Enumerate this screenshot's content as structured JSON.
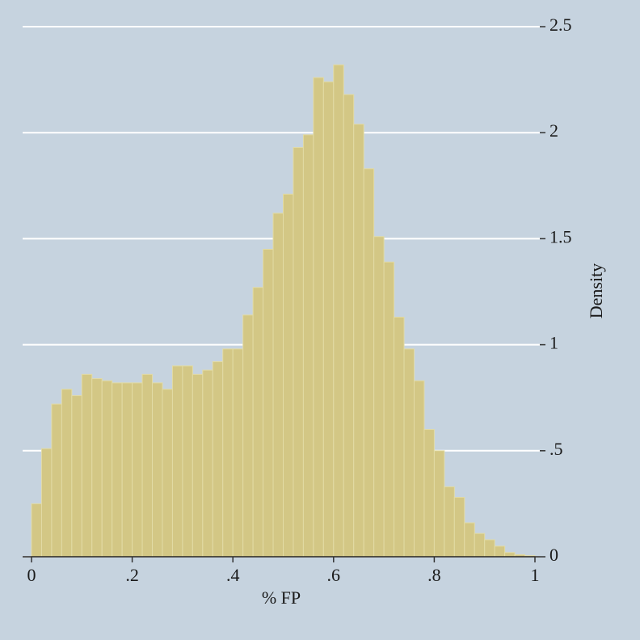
{
  "chart_data": {
    "type": "histogram",
    "xlabel": "% FP",
    "ylabel": "Density",
    "bins": [
      0,
      0.02,
      0.04,
      0.06,
      0.08,
      0.1,
      0.12,
      0.14,
      0.16,
      0.18,
      0.2,
      0.22,
      0.24,
      0.26,
      0.28,
      0.3,
      0.32,
      0.34,
      0.36,
      0.38,
      0.4,
      0.42,
      0.44,
      0.46,
      0.48,
      0.5,
      0.52,
      0.54,
      0.56,
      0.58,
      0.6,
      0.62,
      0.64,
      0.66,
      0.68,
      0.7,
      0.72,
      0.74,
      0.76,
      0.78,
      0.8,
      0.82,
      0.84,
      0.86,
      0.88,
      0.9,
      0.92,
      0.94,
      0.96,
      0.98,
      1
    ],
    "values": [
      0.25,
      0.51,
      0.72,
      0.79,
      0.76,
      0.86,
      0.84,
      0.83,
      0.82,
      0.82,
      0.82,
      0.86,
      0.82,
      0.79,
      0.9,
      0.9,
      0.86,
      0.88,
      0.92,
      0.98,
      0.98,
      1.14,
      1.27,
      1.45,
      1.62,
      1.71,
      1.93,
      1.99,
      2.26,
      2.24,
      2.32,
      2.18,
      2.04,
      1.83,
      1.51,
      1.39,
      1.13,
      0.98,
      0.83,
      0.6,
      0.5,
      0.33,
      0.28,
      0.16,
      0.11,
      0.08,
      0.05,
      0.02,
      0.01,
      0.005
    ],
    "color": "#d3c785",
    "xlim": [
      0,
      1
    ],
    "ylim": [
      0,
      2.5
    ],
    "xticks": [
      0,
      {
        "value": 0.2,
        "label": ".2"
      },
      {
        "value": 0.4,
        "label": ".4"
      },
      {
        "value": 0.6,
        "label": ".6"
      },
      {
        "value": 0.8,
        "label": ".8"
      },
      1
    ],
    "yticks": [
      0,
      {
        "value": 0.5,
        "label": ".5"
      },
      1,
      1.5,
      2,
      2.5
    ],
    "grid": true
  }
}
